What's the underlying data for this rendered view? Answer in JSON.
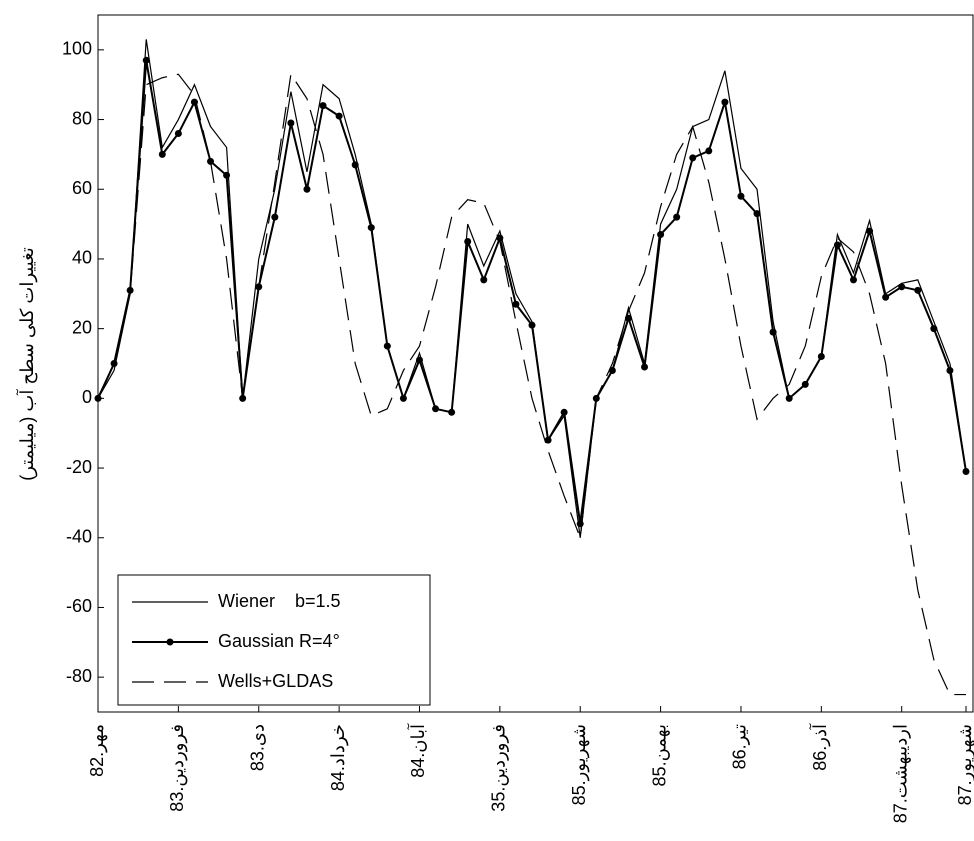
{
  "chart_data": {
    "type": "line",
    "y_label": "تغییرات کلی سطح آب (میلیمتر)",
    "x": [
      0,
      1,
      2,
      3,
      4,
      5,
      6,
      7,
      8,
      9,
      10,
      11,
      12,
      13,
      14,
      15,
      16,
      17,
      18,
      19,
      20,
      21,
      22,
      23,
      24,
      25,
      26,
      27,
      28,
      29,
      30,
      31,
      32,
      33,
      34,
      35,
      36,
      37,
      38,
      39,
      40,
      41,
      42,
      43,
      44,
      45,
      46,
      47,
      48,
      49,
      50,
      51,
      52,
      53,
      54
    ],
    "series": [
      {
        "name": "Wiener    b=1.5",
        "color": "#000000",
        "style": "solid",
        "values": [
          0,
          8,
          30,
          103,
          72,
          80,
          90,
          78,
          72,
          0,
          40,
          60,
          88,
          65,
          90,
          86,
          70,
          50,
          15,
          0,
          13,
          -3,
          -4,
          50,
          38,
          48,
          30,
          22,
          -12,
          -5,
          -40,
          0,
          8,
          26,
          10,
          50,
          60,
          78,
          80,
          94,
          66,
          60,
          22,
          0,
          4,
          12,
          47,
          36,
          51,
          30,
          33,
          34,
          22,
          10,
          -21
        ]
      },
      {
        "name": "Gaussian R=4°",
        "color": "#000000",
        "style": "dots",
        "values": [
          0,
          10,
          31,
          97,
          70,
          76,
          85,
          68,
          64,
          0,
          32,
          52,
          79,
          60,
          84,
          81,
          67,
          49,
          15,
          0,
          11,
          -3,
          -4,
          45,
          34,
          46,
          27,
          21,
          -12,
          -4,
          -36,
          0,
          8,
          23,
          9,
          47,
          52,
          69,
          71,
          85,
          58,
          53,
          19,
          0,
          4,
          12,
          44,
          34,
          48,
          29,
          32,
          31,
          20,
          8,
          -21
        ]
      },
      {
        "name": "Wells+GLDAS",
        "color": "#000000",
        "style": "dashed",
        "values": [
          0,
          10,
          30,
          90,
          92,
          93,
          87,
          68,
          40,
          0,
          32,
          62,
          93,
          86,
          70,
          40,
          10,
          -5,
          -3,
          8,
          15,
          32,
          52,
          57,
          56,
          45,
          22,
          0,
          -15,
          -28,
          -40,
          0,
          10,
          25,
          36,
          55,
          70,
          78,
          62,
          40,
          15,
          -6,
          0,
          4,
          15,
          35,
          46,
          42,
          30,
          10,
          -25,
          -55,
          -75,
          -85,
          -85
        ]
      }
    ],
    "xlim": [
      0,
      54
    ],
    "xticks": [
      {
        "value": 0,
        "label": "82.مهر"
      },
      {
        "value": 5,
        "label": "83.فروردین"
      },
      {
        "value": 10,
        "label": "83.دی"
      },
      {
        "value": 15,
        "label": "84.خرداد"
      },
      {
        "value": 20,
        "label": "84.آبان"
      },
      {
        "value": 25,
        "label": "35.فروردین"
      },
      {
        "value": 30,
        "label": "85.شهریور"
      },
      {
        "value": 35,
        "label": "85.بهمن"
      },
      {
        "value": 40,
        "label": "86.تیر"
      },
      {
        "value": 45,
        "label": "86.آذر"
      },
      {
        "value": 50,
        "label": "87.اردیبهشت"
      },
      {
        "value": 54,
        "label": "87.شهریور"
      }
    ],
    "ylim": [
      -90,
      110
    ],
    "yticks": [
      -80,
      -60,
      -40,
      -20,
      0,
      20,
      40,
      60,
      80,
      100
    ]
  }
}
